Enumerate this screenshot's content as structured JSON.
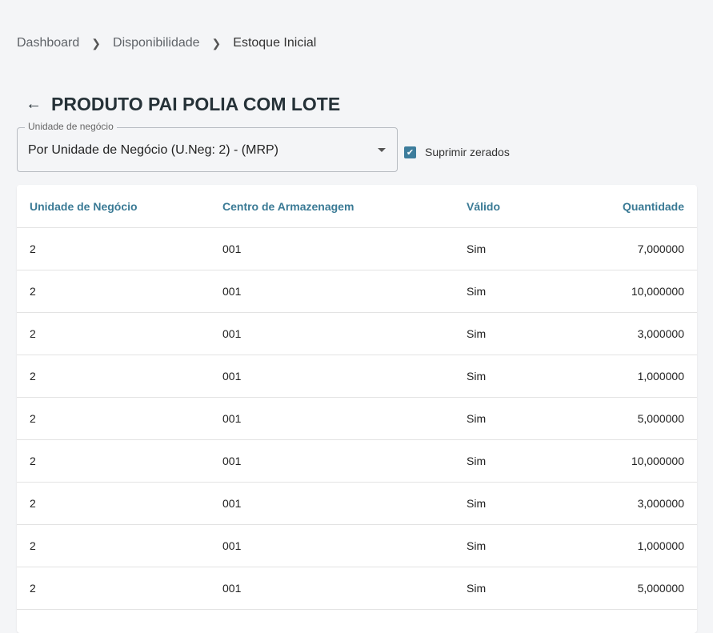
{
  "breadcrumb": [
    "Dashboard",
    "Disponibilidade",
    "Estoque Inicial"
  ],
  "title": "PRODUTO PAI POLIA COM LOTE",
  "filter": {
    "label": "Unidade de negócio",
    "value": "Por Unidade de Negócio (U.Neg: 2) - (MRP)"
  },
  "suppress": {
    "label": "Suprimir zerados",
    "checked": true
  },
  "colors": {
    "accent": "#3a7a95",
    "checkbox": "#3d7d9c"
  },
  "table": {
    "headers": [
      "Unidade de Negócio",
      "Centro de Armazenagem",
      "Válido",
      "Quantidade"
    ],
    "rows": [
      [
        "2",
        "001",
        "Sim",
        "7,000000"
      ],
      [
        "2",
        "001",
        "Sim",
        "10,000000"
      ],
      [
        "2",
        "001",
        "Sim",
        "3,000000"
      ],
      [
        "2",
        "001",
        "Sim",
        "1,000000"
      ],
      [
        "2",
        "001",
        "Sim",
        "5,000000"
      ],
      [
        "2",
        "001",
        "Sim",
        "10,000000"
      ],
      [
        "2",
        "001",
        "Sim",
        "3,000000"
      ],
      [
        "2",
        "001",
        "Sim",
        "1,000000"
      ],
      [
        "2",
        "001",
        "Sim",
        "5,000000"
      ]
    ]
  }
}
